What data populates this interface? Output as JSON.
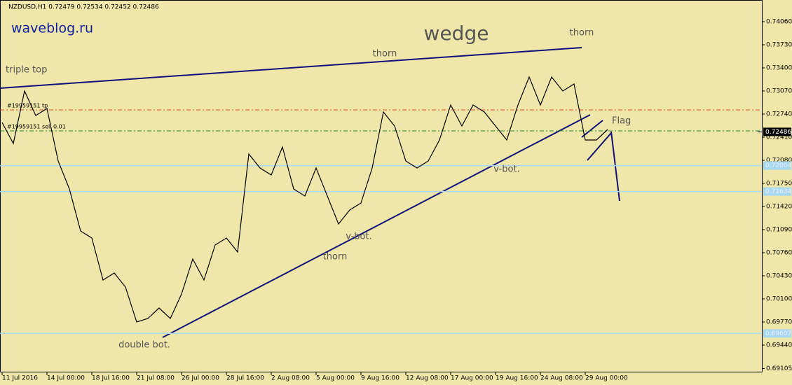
{
  "chart_data": {
    "type": "line",
    "header": "NZDUSD,H1  0.72479 0.72534 0.72452 0.72486",
    "watermark": "waveblog.ru",
    "title": "wedge",
    "annotations": [
      "triple top",
      "thorn",
      "thorn",
      "thorn",
      "v-bot.",
      "v-bot.",
      "double bot.",
      "Flag"
    ],
    "categories": [
      "11 Jul 2016",
      null,
      null,
      null,
      "14 Jul 00:00",
      null,
      null,
      null,
      "18 Jul 16:00",
      null,
      null,
      null,
      "21 Jul 08:00",
      null,
      null,
      null,
      "26 Jul 00:00",
      null,
      null,
      null,
      "28 Jul 16:00",
      null,
      null,
      null,
      "2 Aug 08:00",
      null,
      null,
      null,
      "5 Aug 00:00",
      null,
      null,
      null,
      "9 Aug 16:00",
      null,
      null,
      null,
      "12 Aug 08:00",
      null,
      null,
      null,
      "17 Aug 00:00",
      null,
      null,
      null,
      "19 Aug 16:00",
      null,
      null,
      null,
      "24 Aug 08:00",
      null,
      null,
      null,
      "29 Aug 00:00",
      null,
      null
    ],
    "series": [
      {
        "name": "NZDUSD,H1",
        "color": "#000000",
        "values": [
          0.7262,
          0.7232,
          0.7307,
          0.7272,
          0.7282,
          0.7207,
          0.7167,
          0.7107,
          0.7097,
          0.7037,
          0.7047,
          0.7027,
          0.6977,
          0.6982,
          0.6997,
          0.6982,
          0.7017,
          0.7067,
          0.7037,
          0.7087,
          0.7097,
          0.7077,
          0.7217,
          0.7197,
          0.7187,
          0.7227,
          0.7167,
          0.7157,
          0.7197,
          0.7157,
          0.7117,
          0.7137,
          0.7147,
          0.7197,
          0.7277,
          0.7257,
          0.7207,
          0.7197,
          0.7207,
          0.7237,
          0.7287,
          0.7257,
          0.7287,
          0.7277,
          0.7257,
          0.7237,
          0.7287,
          0.7327,
          0.7287,
          0.7327,
          0.7307,
          0.7317,
          0.7237,
          0.7237,
          0.7252
        ]
      }
    ],
    "ylim": [
      0.6905,
      0.7437
    ],
    "yticks": [
      {
        "value": 0.7406,
        "label": "0.74060"
      },
      {
        "value": 0.7373,
        "label": "0.73730"
      },
      {
        "value": 0.734,
        "label": "0.73400"
      },
      {
        "value": 0.7307,
        "label": "0.73070"
      },
      {
        "value": 0.7274,
        "label": "0.72740"
      },
      {
        "value": 0.7241,
        "label": "0.72410"
      },
      {
        "value": 0.7208,
        "label": "0.72080"
      },
      {
        "value": 0.7175,
        "label": "0.71750"
      },
      {
        "value": 0.7142,
        "label": "0.71420"
      },
      {
        "value": 0.7109,
        "label": "0.71090"
      },
      {
        "value": 0.7076,
        "label": "0.70760"
      },
      {
        "value": 0.7043,
        "label": "0.70430"
      },
      {
        "value": 0.701,
        "label": "0.70100"
      },
      {
        "value": 0.6977,
        "label": "0.69770"
      },
      {
        "value": 0.6944,
        "label": "0.69440"
      },
      {
        "value": 0.69105,
        "label": "0.69105"
      }
    ],
    "orders": [
      {
        "value": 0.728,
        "label": "#19959151 tp",
        "color": "#e0502a"
      },
      {
        "value": 0.725,
        "label": "#19959151 sell 0.01",
        "color": "#2a8a2a"
      }
    ],
    "levels": [
      {
        "value": 0.72486,
        "label": "0.72486",
        "color": "#000000"
      },
      {
        "value": 0.72004,
        "label": "0.72004",
        "color": "#a8d8f0"
      },
      {
        "value": 0.71634,
        "label": "0.71634",
        "color": "#a8d8f0"
      },
      {
        "value": 0.69607,
        "label": "0.69607",
        "color": "#a8d8f0"
      }
    ]
  }
}
